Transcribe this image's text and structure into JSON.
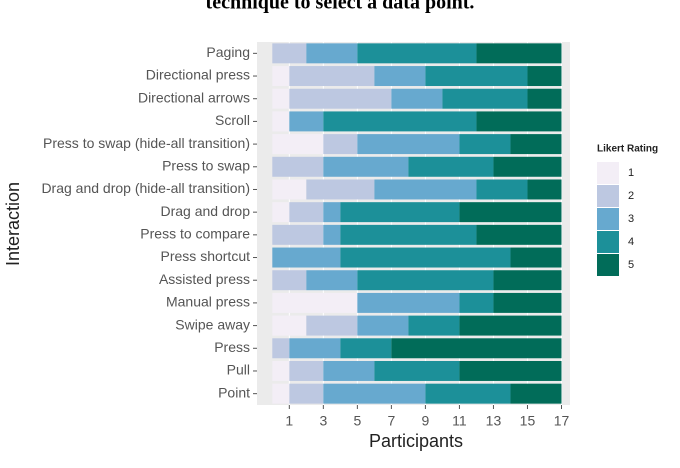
{
  "chart_data": {
    "type": "stacked_barh",
    "title": "technique to select a data point.",
    "xlabel": "Participants",
    "ylabel": "Interaction",
    "legend_title": "Likert Rating",
    "legend": "right",
    "categories": [
      "Paging",
      "Directional press",
      "Directional arrows",
      "Scroll",
      "Press to swap (hide-all transition)",
      "Press to swap",
      "Drag and drop (hide-all transition)",
      "Drag and drop",
      "Press to compare",
      "Press shortcut",
      "Assisted press",
      "Manual press",
      "Swipe away",
      "Press",
      "Pull",
      "Point"
    ],
    "series": [
      {
        "name": "1",
        "color": "#f3eef6",
        "values": [
          0,
          1,
          1,
          1,
          3,
          0,
          2,
          1,
          0,
          0,
          0,
          5,
          2,
          0,
          1,
          1
        ]
      },
      {
        "name": "2",
        "color": "#bdc8e1",
        "values": [
          2,
          5,
          6,
          0,
          2,
          3,
          4,
          2,
          3,
          0,
          2,
          0,
          3,
          1,
          2,
          2
        ]
      },
      {
        "name": "3",
        "color": "#67a9cf",
        "values": [
          3,
          3,
          3,
          2,
          6,
          5,
          6,
          1,
          1,
          4,
          3,
          6,
          3,
          3,
          3,
          6
        ]
      },
      {
        "name": "4",
        "color": "#1c9099",
        "values": [
          7,
          6,
          5,
          9,
          3,
          5,
          3,
          7,
          8,
          10,
          8,
          2,
          3,
          3,
          5,
          5
        ]
      },
      {
        "name": "5",
        "color": "#016c59",
        "values": [
          5,
          2,
          2,
          5,
          3,
          4,
          2,
          6,
          5,
          3,
          4,
          4,
          6,
          10,
          6,
          3
        ]
      }
    ],
    "xlim": [
      -0.9,
      17.5
    ],
    "xticks": [
      1,
      3,
      5,
      7,
      9,
      11,
      13,
      15,
      17
    ],
    "grid": true
  }
}
